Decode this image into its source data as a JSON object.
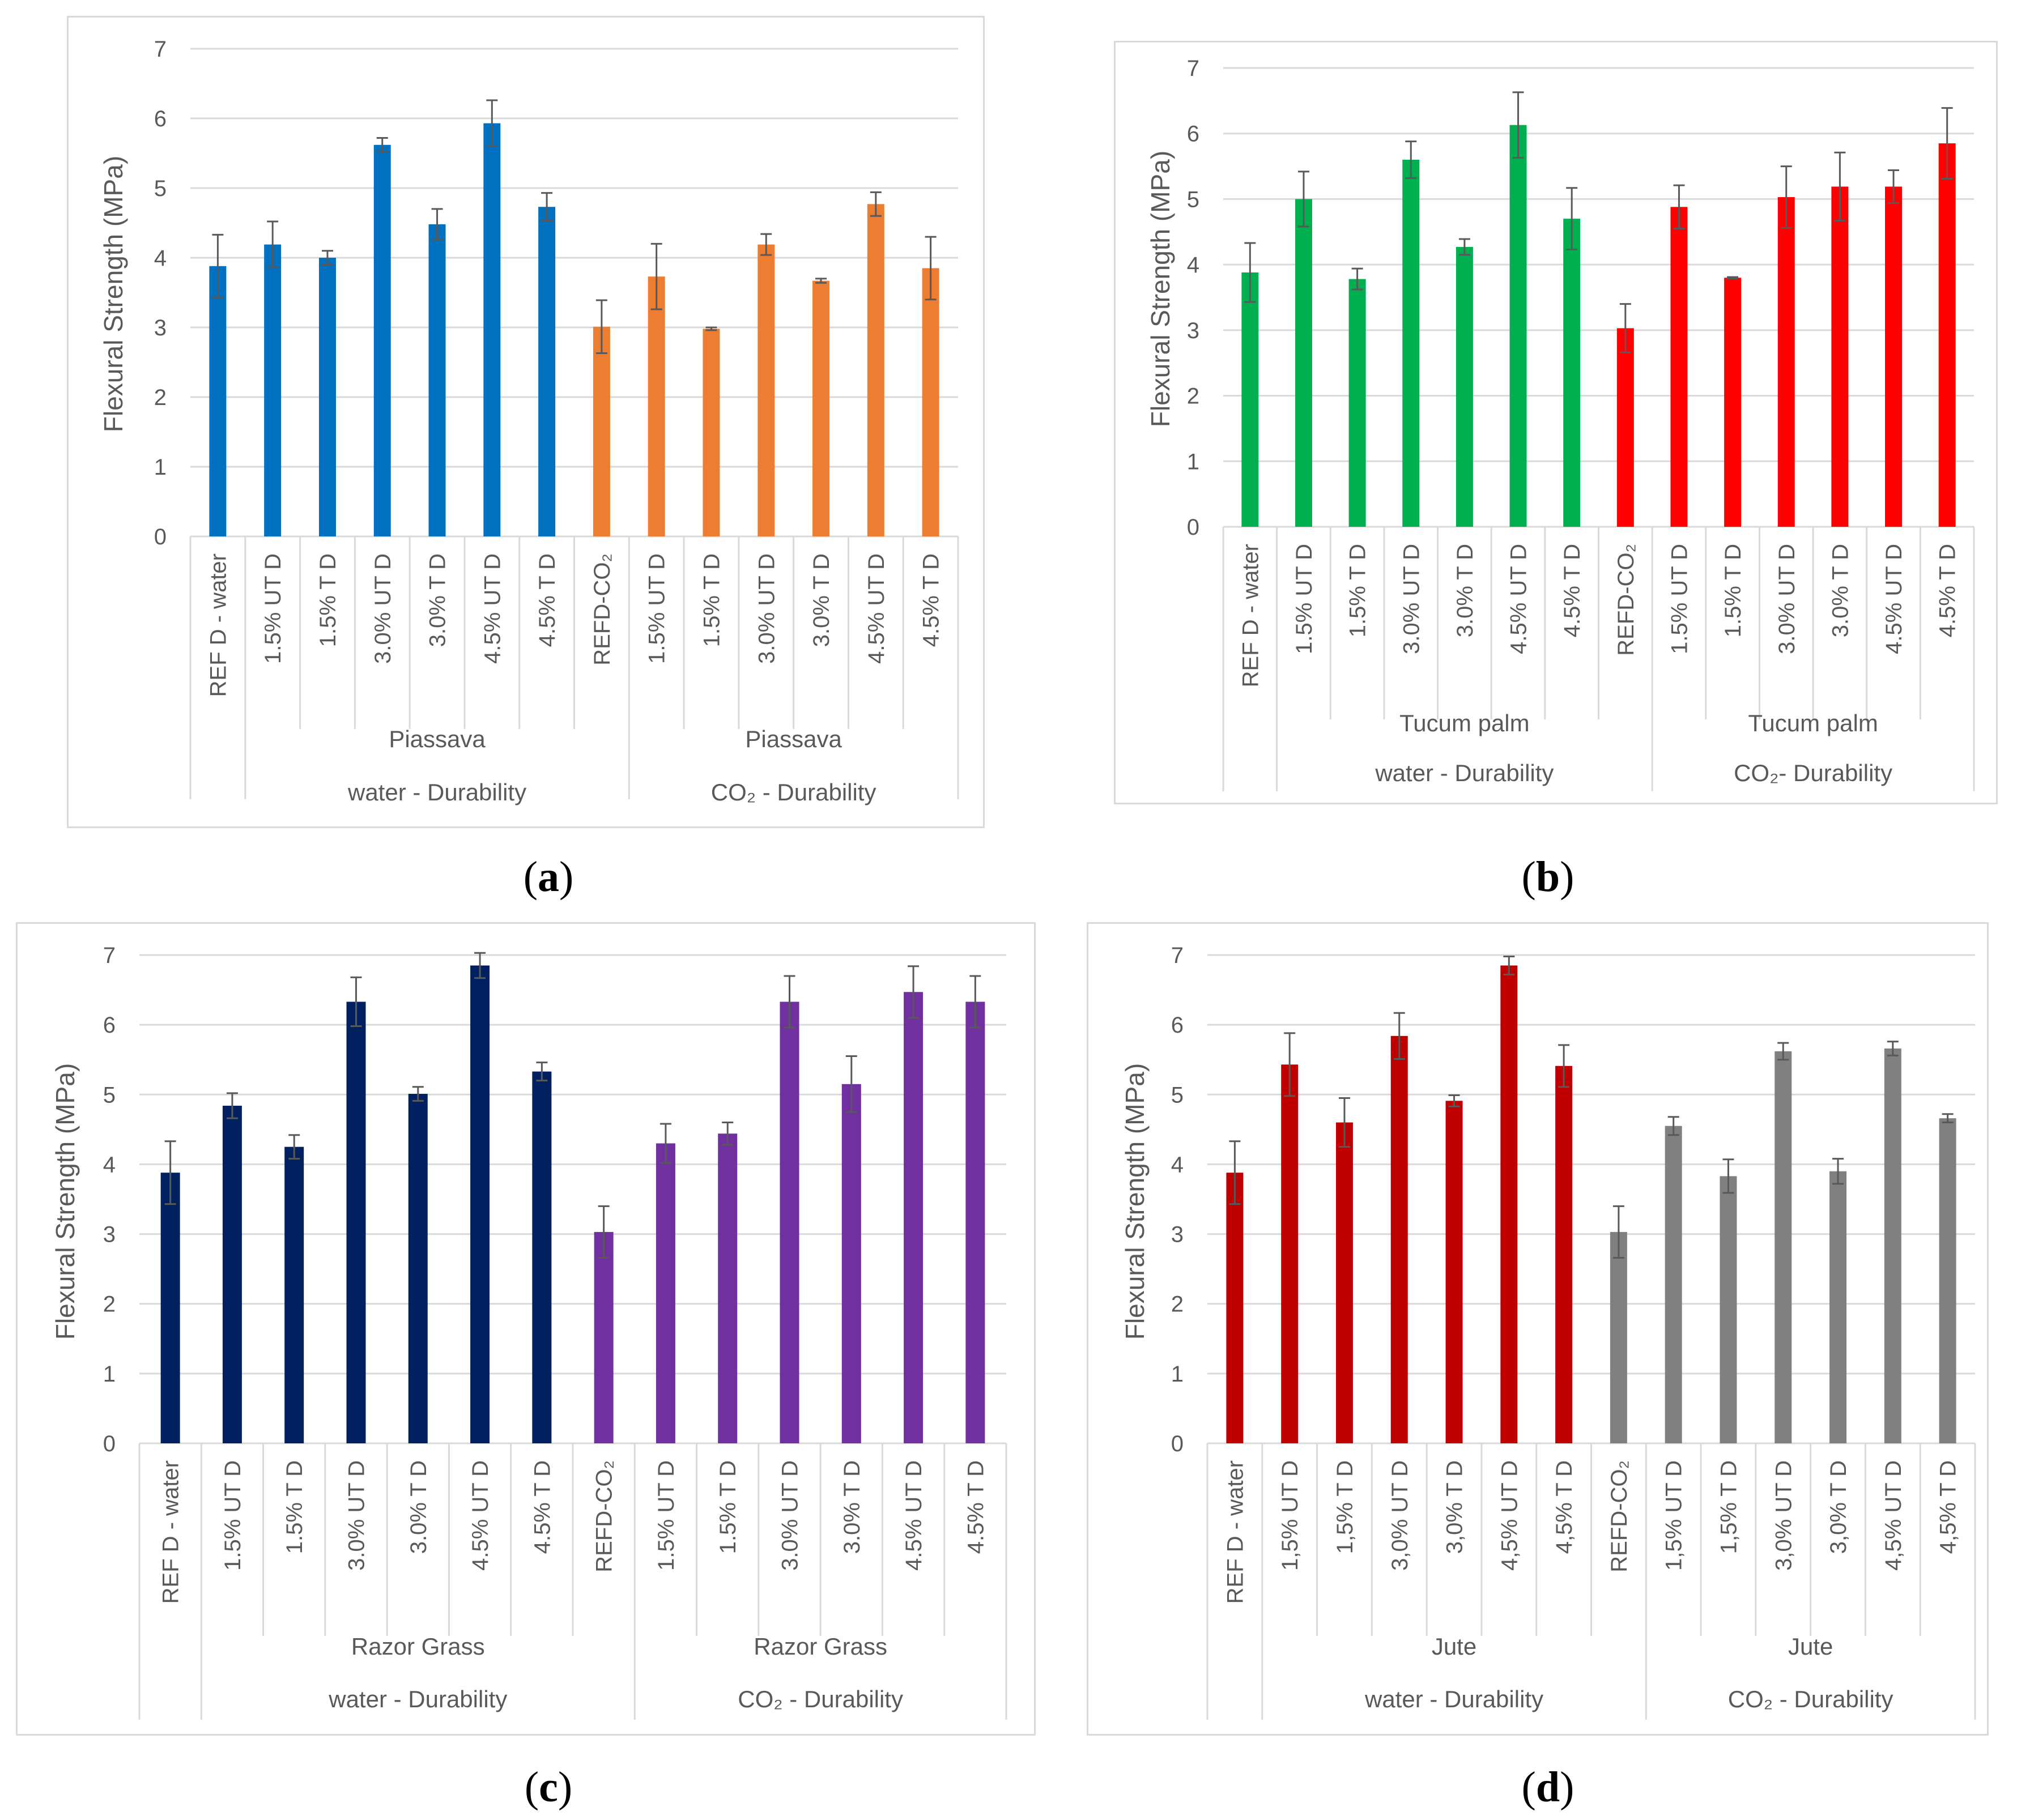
{
  "y_axis_label": "Flexural Strength (MPa)",
  "y_ticks": [
    "0",
    "1",
    "2",
    "3",
    "4",
    "5",
    "6",
    "7"
  ],
  "chart_data": [
    {
      "panel": "a",
      "type": "bar",
      "ylabel": "Flexural Strength (MPa)",
      "ylim": [
        0,
        7
      ],
      "grid": true,
      "categories": [
        "REF D - water",
        "1.5% UT D",
        "1.5%  T D",
        "3.0%  UT D",
        "3.0%  T D",
        "4.5%  UT D",
        "4.5% T D",
        "REFD-CO₂",
        "1.5% UT D",
        "1.5%  T D",
        "3.0%  UT D",
        "3.0%  T D",
        "4.5%  UT D",
        "4.5% T D"
      ],
      "values": [
        3.88,
        4.19,
        4.0,
        5.62,
        4.48,
        5.93,
        4.73,
        3.01,
        3.73,
        2.98,
        4.19,
        3.67,
        4.77,
        3.85
      ],
      "errors": [
        0.45,
        0.33,
        0.1,
        0.1,
        0.22,
        0.33,
        0.2,
        0.38,
        0.47,
        0.02,
        0.15,
        0.03,
        0.17,
        0.45
      ],
      "colors": [
        "#0070c0",
        "#0070c0",
        "#0070c0",
        "#0070c0",
        "#0070c0",
        "#0070c0",
        "#0070c0",
        "#ed7d31",
        "#ed7d31",
        "#ed7d31",
        "#ed7d31",
        "#ed7d31",
        "#ed7d31",
        "#ed7d31"
      ],
      "group1_label": "Piassava",
      "group2_label": "Piassava",
      "condition1_label": "water - Durability",
      "condition2_label": "CO₂ - Durability",
      "panel_label": "a"
    },
    {
      "panel": "b",
      "type": "bar",
      "ylabel": "Flexural Strength (MPa)",
      "ylim": [
        0,
        7
      ],
      "grid": true,
      "categories": [
        "REF D - water",
        "1.5% UT D",
        "1.5%  T D",
        "3.0%  UT D",
        "3.0%  T D",
        "4.5%  UT D",
        "4.5% T D",
        "REFD-CO₂",
        "1.5% UT D",
        "1.5%  T D",
        "3.0%  UT D",
        "3.0%  T D",
        "4.5%  UT D",
        "4.5% T D"
      ],
      "values": [
        3.88,
        5.0,
        3.78,
        5.6,
        4.27,
        6.13,
        4.7,
        3.03,
        4.88,
        3.8,
        5.03,
        5.19,
        5.19,
        5.85
      ],
      "errors": [
        0.45,
        0.42,
        0.16,
        0.28,
        0.12,
        0.5,
        0.47,
        0.37,
        0.33,
        0.01,
        0.47,
        0.52,
        0.25,
        0.54
      ],
      "colors": [
        "#00b050",
        "#00b050",
        "#00b050",
        "#00b050",
        "#00b050",
        "#00b050",
        "#00b050",
        "#ff0000",
        "#ff0000",
        "#ff0000",
        "#ff0000",
        "#ff0000",
        "#ff0000",
        "#ff0000"
      ],
      "group1_label": "Tucum palm",
      "group2_label": "Tucum palm",
      "condition1_label": "water - Durability",
      "condition2_label": "CO₂- Durability",
      "panel_label": "b"
    },
    {
      "panel": "c",
      "type": "bar",
      "ylabel": "Flexural Strength (MPa)",
      "ylim": [
        0,
        7
      ],
      "grid": true,
      "categories": [
        "REF D - water",
        "1.5% UT D",
        "1.5%  T D",
        "3.0%  UT D",
        "3.0%  T D",
        "4.5%  UT D",
        "4.5% T D",
        "REFD-CO₂",
        "1.5% UT D",
        "1.5%  T D",
        "3.0%  UT D",
        "3.0%  T D",
        "4.5%  UT D",
        "4.5% T D"
      ],
      "values": [
        3.88,
        4.84,
        4.25,
        6.33,
        5.01,
        6.85,
        5.33,
        3.03,
        4.3,
        4.44,
        6.33,
        5.15,
        6.47,
        6.33
      ],
      "errors": [
        0.45,
        0.18,
        0.17,
        0.35,
        0.1,
        0.18,
        0.13,
        0.37,
        0.28,
        0.16,
        0.37,
        0.4,
        0.37,
        0.37
      ],
      "colors": [
        "#002060",
        "#002060",
        "#002060",
        "#002060",
        "#002060",
        "#002060",
        "#002060",
        "#7030a0",
        "#7030a0",
        "#7030a0",
        "#7030a0",
        "#7030a0",
        "#7030a0",
        "#7030a0"
      ],
      "group1_label": "Razor Grass",
      "group2_label": "Razor Grass",
      "condition1_label": "water - Durability",
      "condition2_label": "CO₂ - Durability",
      "panel_label": "c"
    },
    {
      "panel": "d",
      "type": "bar",
      "ylabel": "Flexural Strength (MPa)",
      "ylim": [
        0,
        7
      ],
      "grid": true,
      "categories": [
        "REF D - water",
        "1,5% UT D",
        "1,5%  T D",
        "3,0%  UT D",
        "3,0%  T D",
        "4,5%  UT D",
        "4,5% T D",
        "REFD-CO₂",
        "1,5% UT D",
        "1,5%  T D",
        "3,0%  UT D",
        "3,0%  T D",
        "4,5%  UT D",
        "4,5% T D"
      ],
      "values": [
        3.88,
        5.43,
        4.6,
        5.84,
        4.91,
        6.85,
        5.41,
        3.03,
        4.55,
        3.83,
        5.62,
        3.9,
        5.66,
        4.66
      ],
      "errors": [
        0.45,
        0.45,
        0.35,
        0.33,
        0.08,
        0.13,
        0.3,
        0.37,
        0.13,
        0.24,
        0.12,
        0.18,
        0.1,
        0.06
      ],
      "colors": [
        "#c00000",
        "#c00000",
        "#c00000",
        "#c00000",
        "#c00000",
        "#c00000",
        "#c00000",
        "#808080",
        "#808080",
        "#808080",
        "#808080",
        "#808080",
        "#808080",
        "#808080"
      ],
      "group1_label": "Jute",
      "group2_label": "Jute",
      "condition1_label": "water - Durability",
      "condition2_label": "CO₂ - Durability",
      "panel_label": "d"
    }
  ]
}
